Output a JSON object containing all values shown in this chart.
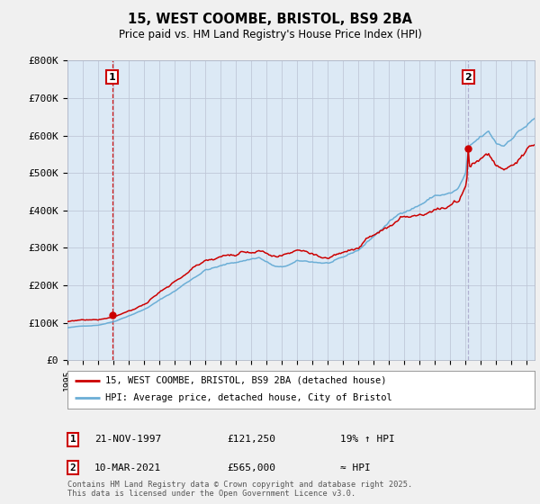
{
  "title_line1": "15, WEST COOMBE, BRISTOL, BS9 2BA",
  "title_line2": "Price paid vs. HM Land Registry's House Price Index (HPI)",
  "legend_line1": "15, WEST COOMBE, BRISTOL, BS9 2BA (detached house)",
  "legend_line2": "HPI: Average price, detached house, City of Bristol",
  "annotation1_label": "1",
  "annotation1_date": "21-NOV-1997",
  "annotation1_price": "£121,250",
  "annotation1_note": "19% ↑ HPI",
  "annotation2_label": "2",
  "annotation2_date": "10-MAR-2021",
  "annotation2_price": "£565,000",
  "annotation2_note": "≈ HPI",
  "footer": "Contains HM Land Registry data © Crown copyright and database right 2025.\nThis data is licensed under the Open Government Licence v3.0.",
  "sale1_year": 1997.89,
  "sale1_price": 121250,
  "sale2_year": 2021.19,
  "sale2_price": 565000,
  "hpi_color": "#6baed6",
  "sale_color": "#cc0000",
  "vline2_color": "#aaaacc",
  "plot_bg_color": "#dce9f5",
  "fig_bg_color": "#f0f0f0",
  "ylim": [
    0,
    800000
  ],
  "xlim_start": 1995,
  "xlim_end": 2025.5,
  "hpi_base_1995": 87000,
  "hpi_base_2021": 565000,
  "prop_premium": 1.19
}
